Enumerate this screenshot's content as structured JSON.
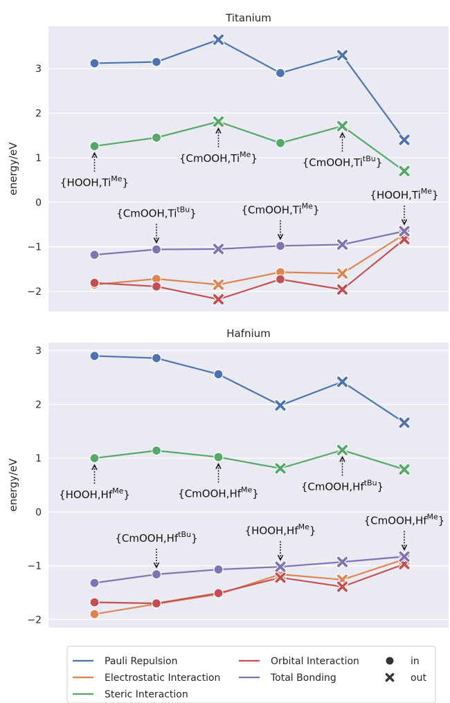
{
  "chart_data": [
    {
      "type": "line",
      "title": "Titanium",
      "ylabel": "energy/eV",
      "xlabel": "",
      "ylim": [
        -2.45,
        3.95
      ],
      "yticks": [
        -2,
        -1,
        0,
        1,
        2,
        3
      ],
      "x": [
        1,
        2,
        3,
        4,
        5,
        6
      ],
      "markers": [
        "in",
        "in",
        "out",
        "in",
        "out",
        "out"
      ],
      "grid": true,
      "series": [
        {
          "name": "Pauli Repulsion",
          "color": "#4c72b0",
          "values": [
            3.12,
            3.15,
            3.65,
            2.9,
            3.3,
            1.4
          ]
        },
        {
          "name": "Steric Interaction",
          "color": "#55a868",
          "values": [
            1.26,
            1.45,
            1.81,
            1.33,
            1.71,
            0.7
          ]
        },
        {
          "name": "Total Bonding",
          "color": "#8172b3",
          "values": [
            -1.18,
            -1.06,
            -1.05,
            -0.98,
            -0.95,
            -0.65
          ]
        },
        {
          "name": "Electrostatic Interaction",
          "color": "#dd8452",
          "values": [
            -1.85,
            -1.72,
            -1.85,
            -1.57,
            -1.6,
            -0.72
          ]
        },
        {
          "name": "Orbital Interaction",
          "color": "#c44e52",
          "values": [
            -1.81,
            -1.89,
            -2.18,
            -1.73,
            -1.96,
            -0.83
          ]
        }
      ],
      "annotations": [
        {
          "base": "{HOOH,Ti",
          "sup": "Me",
          "tail": "}",
          "x": 1,
          "series": "Steric Interaction",
          "direction": "down"
        },
        {
          "base": "{CmOOH,Ti",
          "sup": "Me",
          "tail": "}",
          "x": 3,
          "series": "Steric Interaction",
          "direction": "down"
        },
        {
          "base": "{CmOOH,Ti",
          "sup": "tBu",
          "tail": "}",
          "x": 5,
          "series": "Steric Interaction",
          "direction": "down"
        },
        {
          "base": "{CmOOH,Ti",
          "sup": "tBu",
          "tail": "}",
          "x": 2,
          "series": "Total Bonding",
          "direction": "up"
        },
        {
          "base": "{CmOOH,Ti",
          "sup": "Me",
          "tail": "}",
          "x": 4,
          "series": "Total Bonding",
          "direction": "up"
        },
        {
          "base": "{HOOH,Ti",
          "sup": "Me",
          "tail": "}",
          "x": 6,
          "series": "Total Bonding",
          "direction": "up"
        }
      ]
    },
    {
      "type": "line",
      "title": "Hafnium",
      "ylabel": "energy/eV",
      "xlabel": "",
      "ylim": [
        -2.15,
        3.15
      ],
      "yticks": [
        -2,
        -1,
        0,
        1,
        2,
        3
      ],
      "x": [
        1,
        2,
        3,
        4,
        5,
        6
      ],
      "markers": [
        "in",
        "in",
        "in",
        "out",
        "out",
        "out"
      ],
      "grid": true,
      "series": [
        {
          "name": "Pauli Repulsion",
          "color": "#4c72b0",
          "values": [
            2.9,
            2.86,
            2.56,
            1.98,
            2.42,
            1.66
          ]
        },
        {
          "name": "Steric Interaction",
          "color": "#55a868",
          "values": [
            1.0,
            1.14,
            1.02,
            0.81,
            1.15,
            0.79
          ]
        },
        {
          "name": "Total Bonding",
          "color": "#8172b3",
          "values": [
            -1.32,
            -1.16,
            -1.07,
            -1.02,
            -0.93,
            -0.83
          ]
        },
        {
          "name": "Electrostatic Interaction",
          "color": "#dd8452",
          "values": [
            -1.9,
            -1.71,
            -1.53,
            -1.16,
            -1.26,
            -0.88
          ]
        },
        {
          "name": "Orbital Interaction",
          "color": "#c44e52",
          "values": [
            -1.68,
            -1.7,
            -1.51,
            -1.22,
            -1.39,
            -0.97
          ]
        }
      ],
      "annotations": [
        {
          "base": "{HOOH,Hf",
          "sup": "Me",
          "tail": "}",
          "x": 1,
          "series": "Steric Interaction",
          "direction": "down"
        },
        {
          "base": "{CmOOH,Hf",
          "sup": "Me",
          "tail": "}",
          "x": 3,
          "series": "Steric Interaction",
          "direction": "down"
        },
        {
          "base": "{CmOOH,Hf",
          "sup": "tBu",
          "tail": "}",
          "x": 5,
          "series": "Steric Interaction",
          "direction": "down"
        },
        {
          "base": "{CmOOH,Hf",
          "sup": "tBu",
          "tail": "}",
          "x": 2,
          "series": "Total Bonding",
          "direction": "up"
        },
        {
          "base": "{HOOH,Hf",
          "sup": "Me",
          "tail": "}",
          "x": 4,
          "series": "Total Bonding",
          "direction": "up"
        },
        {
          "base": "{CmOOH,Hf",
          "sup": "Me",
          "tail": "}",
          "x": 6,
          "series": "Total Bonding",
          "direction": "up"
        }
      ]
    }
  ],
  "legend": {
    "placement": "bottom",
    "series_entries": [
      {
        "label": "Pauli Repulsion",
        "color": "#4c72b0"
      },
      {
        "label": "Electrostatic Interaction",
        "color": "#dd8452"
      },
      {
        "label": "Steric Interaction",
        "color": "#55a868"
      },
      {
        "label": "Orbital Interaction",
        "color": "#c44e52"
      },
      {
        "label": "Total Bonding",
        "color": "#8172b3"
      }
    ],
    "marker_entries": [
      {
        "label": "in",
        "marker": "circle"
      },
      {
        "label": "out",
        "marker": "x"
      }
    ]
  },
  "style": {
    "plot_background": "#eaeaf2",
    "grid_color": "#ffffff",
    "text_color": "#262626",
    "annotation_color": "#111111"
  }
}
